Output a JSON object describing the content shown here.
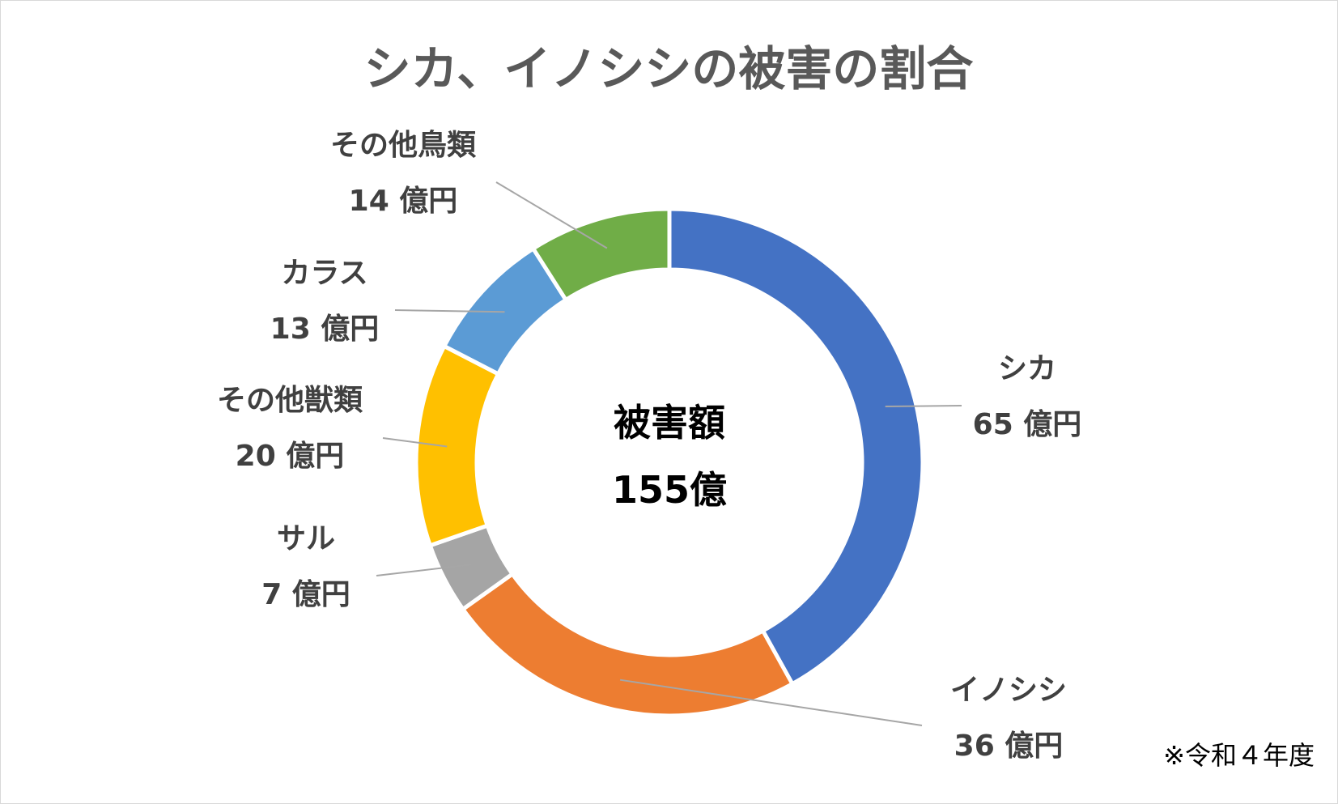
{
  "chart_data": {
    "type": "pie",
    "variant": "doughnut",
    "title": "シカ、イノシシの被害の割合",
    "center": {
      "line1": "被害額",
      "line2": "155億"
    },
    "note": "※令和４年度",
    "slices": [
      {
        "name": "シカ",
        "value": 65,
        "value_label": "65 億円",
        "color": "#4472C4"
      },
      {
        "name": "イノシシ",
        "value": 36,
        "value_label": "36 億円",
        "color": "#ED7D31"
      },
      {
        "name": "サル",
        "value": 7,
        "value_label": "7 億円",
        "color": "#A5A5A5"
      },
      {
        "name": "その他獣類",
        "value": 20,
        "value_label": "20 億円",
        "color": "#FFC000"
      },
      {
        "name": "カラス",
        "value": 13,
        "value_label": "13 億円",
        "color": "#5B9BD5"
      },
      {
        "name": "その他鳥類",
        "value": 14,
        "value_label": "14 億円",
        "color": "#70AD47"
      }
    ],
    "legend": "none",
    "data_labels": "outside with leader lines"
  }
}
